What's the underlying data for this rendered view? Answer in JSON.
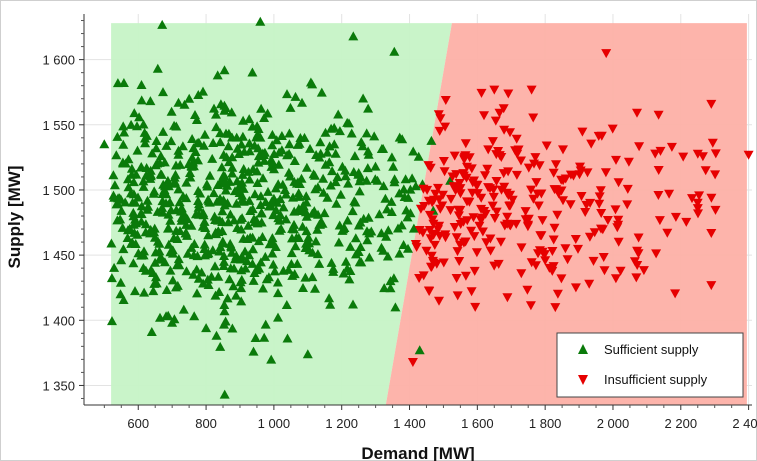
{
  "chart_data": {
    "type": "scatter",
    "title": "",
    "xlabel": "Demand [MW]",
    "ylabel": "Supply [MW]",
    "xlim": [
      440,
      2410
    ],
    "ylim": [
      1335,
      1635
    ],
    "x_ticks": [
      600,
      800,
      1000,
      1200,
      1400,
      1600,
      1800,
      2000,
      2200,
      2400
    ],
    "x_tick_labels": [
      "600",
      "800",
      "1 000",
      "1 200",
      "1 400",
      "1 600",
      "1 800",
      "2 000",
      "2 200",
      "2 400"
    ],
    "y_ticks": [
      1350,
      1400,
      1450,
      1500,
      1550,
      1600
    ],
    "y_tick_labels": [
      "1 350",
      "1 400",
      "1 450",
      "1 500",
      "1 550",
      "1 600"
    ],
    "grid": true,
    "legend_position": "bottom-right",
    "regions": [
      {
        "name": "Sufficient supply",
        "color": "#c6f3c6",
        "polygon": [
          [
            520,
            1335
          ],
          [
            1330,
            1335
          ],
          [
            1525,
            1628
          ],
          [
            520,
            1628
          ]
        ]
      },
      {
        "name": "Insufficient supply",
        "color": "#fdb0a6",
        "polygon": [
          [
            1330,
            1335
          ],
          [
            2395,
            1335
          ],
          [
            2395,
            1628
          ],
          [
            1525,
            1628
          ]
        ]
      }
    ],
    "series": [
      {
        "name": "Sufficient supply",
        "marker": "triangle-up",
        "color": "#0a7a0a",
        "generator": {
          "seed": 7,
          "count": 720,
          "x_range": [
            520,
            1520
          ],
          "x_center": 860,
          "x_spread": 260,
          "y_center": 1487,
          "y_spread": 40,
          "y_range": [
            1342,
            1628
          ],
          "boundary": {
            "x1": 1330,
            "y1": 1335,
            "x2": 1525,
            "y2": 1628,
            "side": "left"
          }
        },
        "points": [
          [
            500,
            1535
          ],
          [
            540,
            1582
          ],
          [
            960,
            1629
          ],
          [
            855,
            1343
          ],
          [
            1355,
            1606
          ],
          [
            1430,
            1377
          ],
          [
            1100,
            1374
          ],
          [
            640,
            1391
          ],
          [
            800,
            1394
          ],
          [
            940,
            1376
          ],
          [
            1040,
            1386
          ],
          [
            1520,
            1507
          ],
          [
            1470,
            1484
          ]
        ]
      },
      {
        "name": "Insufficient supply",
        "marker": "triangle-down",
        "color": "#e60000",
        "generator": {
          "seed": 11,
          "count": 300,
          "x_range": [
            1400,
            2310
          ],
          "x_center": 1560,
          "x_spread": 230,
          "y_center": 1487,
          "y_spread": 35,
          "y_range": [
            1398,
            1575
          ],
          "boundary": {
            "x1": 1330,
            "y1": 1335,
            "x2": 1525,
            "y2": 1628,
            "side": "right"
          }
        },
        "points": [
          [
            1980,
            1605
          ],
          [
            2400,
            1527
          ],
          [
            2290,
            1566
          ],
          [
            1760,
            1577
          ],
          [
            1650,
            1577
          ],
          [
            1410,
            1368
          ],
          [
            2290,
            1427
          ],
          [
            2290,
            1467
          ],
          [
            1800,
            1446
          ],
          [
            1930,
            1428
          ]
        ]
      }
    ]
  },
  "legend": {
    "items": [
      "Sufficient supply",
      "Insufficient supply"
    ]
  }
}
